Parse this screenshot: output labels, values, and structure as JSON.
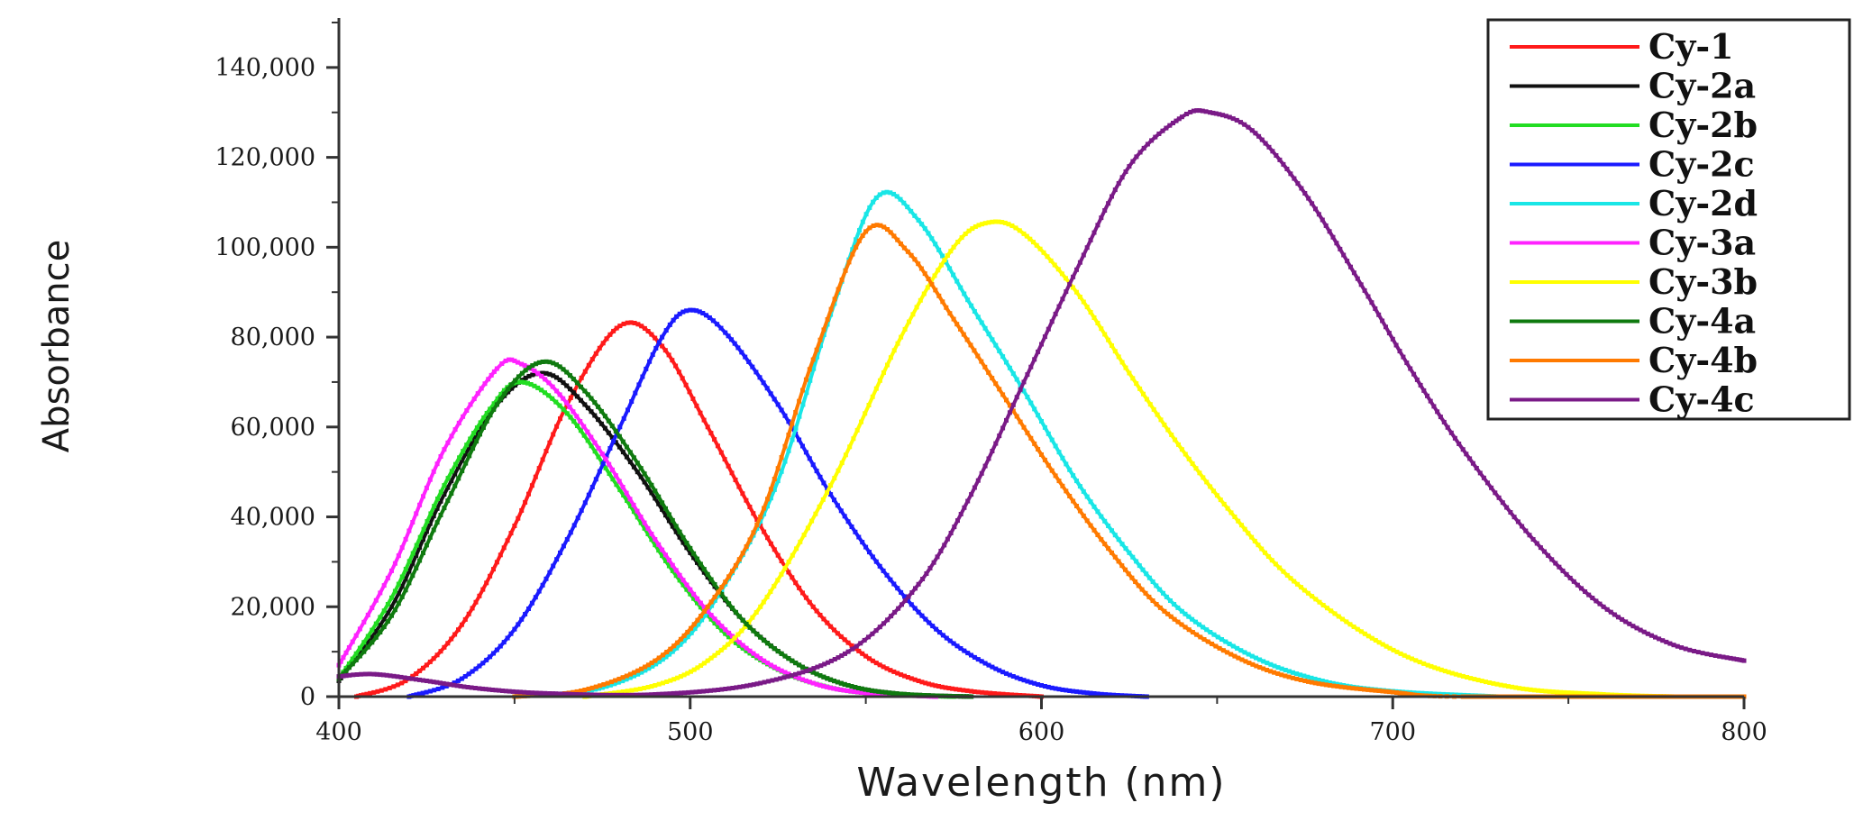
{
  "chart_data": {
    "type": "line",
    "title": "",
    "xlabel": "Wavelength (nm)",
    "ylabel": "Absorbance",
    "xlim": [
      400,
      800
    ],
    "ylim": [
      0,
      150000
    ],
    "x_ticks": [
      400,
      500,
      600,
      700,
      800
    ],
    "x_tick_labels": [
      "400",
      "500",
      "600",
      "700",
      "800"
    ],
    "y_ticks": [
      0,
      20000,
      40000,
      60000,
      80000,
      100000,
      120000,
      140000
    ],
    "y_tick_labels": [
      "0",
      "20,000",
      "40,000",
      "60,000",
      "80,000",
      "100,000",
      "120,000",
      "140,000"
    ],
    "grid": false,
    "legend_position": "top-right",
    "series": [
      {
        "name": "Cy-1",
        "color": "#ff1a1a",
        "points": [
          [
            405,
            0
          ],
          [
            420,
            4000
          ],
          [
            435,
            16000
          ],
          [
            450,
            38000
          ],
          [
            465,
            65000
          ],
          [
            480,
            82500
          ],
          [
            492,
            78000
          ],
          [
            505,
            60000
          ],
          [
            520,
            38000
          ],
          [
            535,
            20000
          ],
          [
            550,
            9000
          ],
          [
            565,
            3500
          ],
          [
            580,
            1200
          ],
          [
            600,
            0
          ]
        ]
      },
      {
        "name": "Cy-2a",
        "color": "#111111",
        "points": [
          [
            400,
            3500
          ],
          [
            415,
            20000
          ],
          [
            430,
            45000
          ],
          [
            445,
            65000
          ],
          [
            458,
            72000
          ],
          [
            470,
            65000
          ],
          [
            485,
            50000
          ],
          [
            500,
            32000
          ],
          [
            515,
            17000
          ],
          [
            530,
            7500
          ],
          [
            545,
            2500
          ],
          [
            560,
            600
          ],
          [
            580,
            0
          ]
        ]
      },
      {
        "name": "Cy-2b",
        "color": "#22dd22",
        "points": [
          [
            400,
            4000
          ],
          [
            415,
            22000
          ],
          [
            430,
            47000
          ],
          [
            443,
            64000
          ],
          [
            452,
            70000
          ],
          [
            465,
            63000
          ],
          [
            480,
            46000
          ],
          [
            495,
            28000
          ],
          [
            510,
            14000
          ],
          [
            525,
            6000
          ],
          [
            540,
            2000
          ],
          [
            555,
            500
          ],
          [
            575,
            0
          ]
        ]
      },
      {
        "name": "Cy-2c",
        "color": "#1a1aff",
        "points": [
          [
            420,
            0
          ],
          [
            435,
            4000
          ],
          [
            450,
            15000
          ],
          [
            465,
            35000
          ],
          [
            480,
            60000
          ],
          [
            492,
            80000
          ],
          [
            500,
            86000
          ],
          [
            510,
            81000
          ],
          [
            525,
            65000
          ],
          [
            540,
            45000
          ],
          [
            555,
            28000
          ],
          [
            570,
            15000
          ],
          [
            585,
            7000
          ],
          [
            600,
            2500
          ],
          [
            615,
            700
          ],
          [
            630,
            0
          ]
        ]
      },
      {
        "name": "Cy-2d",
        "color": "#19e6e6",
        "points": [
          [
            450,
            0
          ],
          [
            475,
            2000
          ],
          [
            495,
            10000
          ],
          [
            510,
            25000
          ],
          [
            525,
            48000
          ],
          [
            540,
            85000
          ],
          [
            553,
            111000
          ],
          [
            565,
            106000
          ],
          [
            580,
            87000
          ],
          [
            595,
            68000
          ],
          [
            610,
            48000
          ],
          [
            625,
            32000
          ],
          [
            640,
            19000
          ],
          [
            660,
            9000
          ],
          [
            680,
            3500
          ],
          [
            700,
            1200
          ],
          [
            730,
            0
          ]
        ]
      },
      {
        "name": "Cy-3a",
        "color": "#ff22ff",
        "points": [
          [
            400,
            7000
          ],
          [
            415,
            28000
          ],
          [
            430,
            55000
          ],
          [
            445,
            73000
          ],
          [
            452,
            74000
          ],
          [
            462,
            68000
          ],
          [
            475,
            54000
          ],
          [
            490,
            35000
          ],
          [
            505,
            19000
          ],
          [
            520,
            8500
          ],
          [
            535,
            3000
          ],
          [
            550,
            800
          ],
          [
            570,
            0
          ]
        ]
      },
      {
        "name": "Cy-3b",
        "color": "#ffff00",
        "points": [
          [
            470,
            0
          ],
          [
            490,
            2500
          ],
          [
            505,
            8000
          ],
          [
            520,
            20000
          ],
          [
            540,
            47000
          ],
          [
            560,
            80000
          ],
          [
            575,
            100000
          ],
          [
            585,
            105500
          ],
          [
            595,
            103000
          ],
          [
            610,
            90000
          ],
          [
            625,
            72000
          ],
          [
            640,
            55000
          ],
          [
            655,
            40000
          ],
          [
            670,
            27000
          ],
          [
            690,
            15000
          ],
          [
            710,
            7000
          ],
          [
            735,
            2000
          ],
          [
            760,
            500
          ],
          [
            780,
            0
          ]
        ]
      },
      {
        "name": "Cy-4a",
        "color": "#0f7a0f",
        "points": [
          [
            400,
            4000
          ],
          [
            415,
            18000
          ],
          [
            430,
            42000
          ],
          [
            445,
            65000
          ],
          [
            458,
            74500
          ],
          [
            470,
            68000
          ],
          [
            485,
            52000
          ],
          [
            500,
            33000
          ],
          [
            515,
            17000
          ],
          [
            530,
            7500
          ],
          [
            545,
            2500
          ],
          [
            560,
            600
          ],
          [
            580,
            0
          ]
        ]
      },
      {
        "name": "Cy-4b",
        "color": "#ff7a00",
        "points": [
          [
            450,
            0
          ],
          [
            470,
            1500
          ],
          [
            490,
            8000
          ],
          [
            505,
            20000
          ],
          [
            520,
            40000
          ],
          [
            535,
            75000
          ],
          [
            550,
            103500
          ],
          [
            562,
            99000
          ],
          [
            575,
            84000
          ],
          [
            590,
            66000
          ],
          [
            605,
            48000
          ],
          [
            620,
            32000
          ],
          [
            635,
            19000
          ],
          [
            655,
            9000
          ],
          [
            675,
            3500
          ],
          [
            700,
            1000
          ],
          [
            720,
            0
          ],
          [
            800,
            0
          ]
        ]
      },
      {
        "name": "Cy-4c",
        "color": "#7a1a87",
        "points": [
          [
            400,
            4500
          ],
          [
            410,
            5000
          ],
          [
            425,
            3500
          ],
          [
            440,
            1800
          ],
          [
            460,
            700
          ],
          [
            490,
            500
          ],
          [
            520,
            3000
          ],
          [
            545,
            10000
          ],
          [
            565,
            25000
          ],
          [
            580,
            45000
          ],
          [
            595,
            70000
          ],
          [
            610,
            95000
          ],
          [
            625,
            118000
          ],
          [
            640,
            129000
          ],
          [
            648,
            130000
          ],
          [
            660,
            126000
          ],
          [
            675,
            112000
          ],
          [
            690,
            93000
          ],
          [
            705,
            73000
          ],
          [
            720,
            55000
          ],
          [
            740,
            35000
          ],
          [
            760,
            20000
          ],
          [
            780,
            11500
          ],
          [
            800,
            8000
          ]
        ]
      }
    ]
  }
}
